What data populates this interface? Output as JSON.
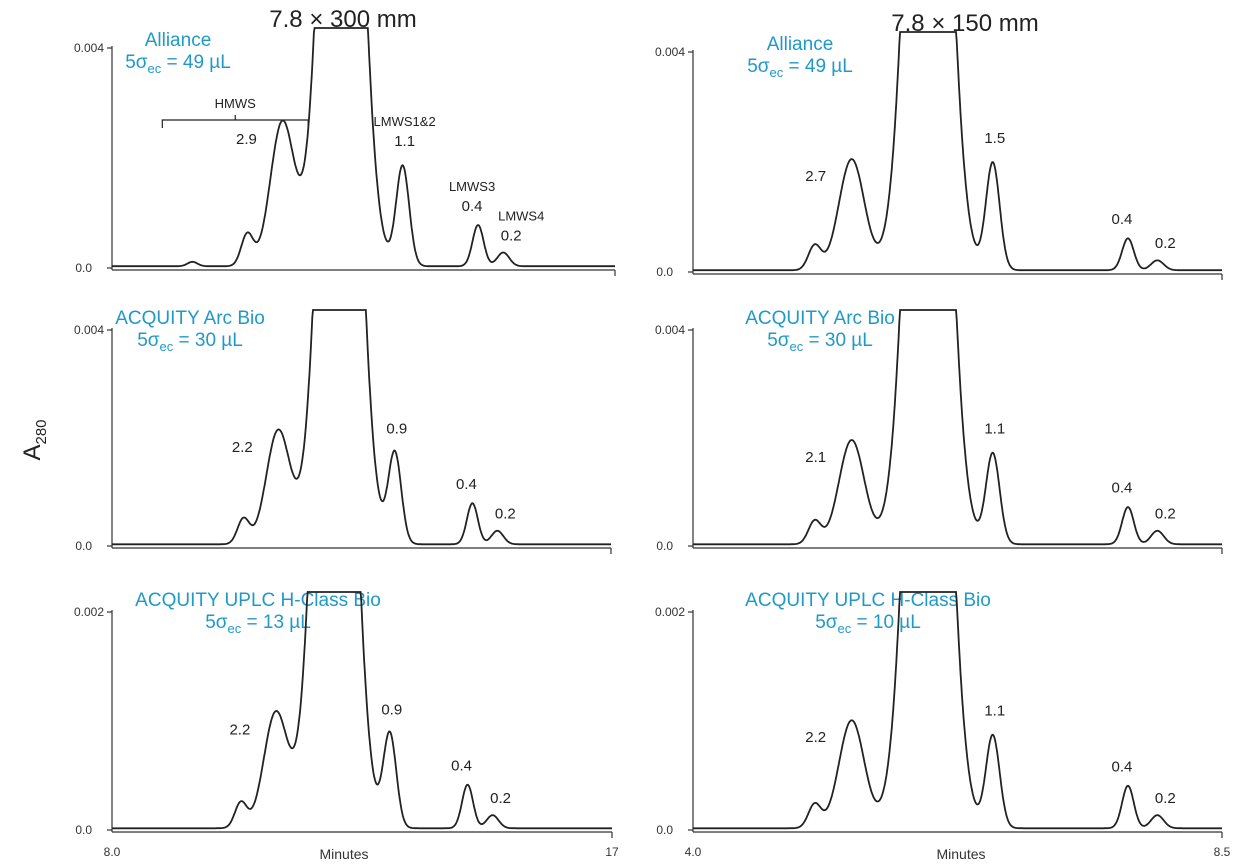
{
  "figure": {
    "column_titles": [
      "7.8 × 300 mm",
      "7.8 × 150 mm"
    ],
    "y_axis_label": "A",
    "y_axis_label_sub": "280",
    "x_axis_label": "Minutes",
    "colors": {
      "instrument_label": "#1f9ac8",
      "trace": "#222222"
    }
  },
  "chart_data": [
    {
      "type": "line",
      "title": "7.8 × 300 mm",
      "instrument": "Alliance",
      "sigma_ec": "49",
      "xlabel": "",
      "ylabel": "A280",
      "xlim": [
        8.0,
        17.0
      ],
      "ylim": [
        0.0,
        0.004
      ],
      "ytick_labels": [
        "0.0",
        "0.004"
      ],
      "xtick_labels": [],
      "peaks": [
        {
          "label": "2.9",
          "name": "",
          "x": 11.05,
          "y": 0.00262
        },
        {
          "label": "1.1",
          "name": "LMWS1&2",
          "x": 13.2,
          "y": 0.00182
        },
        {
          "label": "0.4",
          "name": "LMWS3",
          "x": 14.55,
          "y": 0.00075
        },
        {
          "label": "0.2",
          "name": "LMWS4",
          "x": 15.0,
          "y": 0.00025
        }
      ],
      "annotations": [
        "HMWS"
      ]
    },
    {
      "type": "line",
      "title": "7.8 × 150 mm",
      "instrument": "Alliance",
      "sigma_ec": "49",
      "xlabel": "",
      "ylabel": "A280",
      "xlim": [
        4.0,
        8.5
      ],
      "ylim": [
        0.0,
        0.004
      ],
      "ytick_labels": [
        "0.0",
        "0.004"
      ],
      "xtick_labels": [],
      "peaks": [
        {
          "label": "2.7",
          "x": 5.35,
          "y": 0.00202
        },
        {
          "label": "1.5",
          "x": 6.55,
          "y": 0.00195
        },
        {
          "label": "0.4",
          "x": 7.7,
          "y": 0.00058
        },
        {
          "label": "0.2",
          "x": 7.95,
          "y": 0.00018
        }
      ],
      "annotations": []
    },
    {
      "type": "line",
      "instrument": "ACQUITY Arc Bio",
      "sigma_ec": "30",
      "xlabel": "",
      "ylabel": "A280",
      "xlim": [
        8.0,
        17.0
      ],
      "ylim": [
        0.0,
        0.004
      ],
      "ytick_labels": [
        "0.0",
        "0.004"
      ],
      "xtick_labels": [],
      "peaks": [
        {
          "label": "2.2",
          "x": 11.0,
          "y": 0.00211
        },
        {
          "label": "0.9",
          "x": 13.1,
          "y": 0.00168
        },
        {
          "label": "0.4",
          "x": 14.5,
          "y": 0.00076
        },
        {
          "label": "0.2",
          "x": 14.95,
          "y": 0.00025
        }
      ],
      "annotations": []
    },
    {
      "type": "line",
      "instrument": "ACQUITY Arc Bio",
      "sigma_ec": "30",
      "xlabel": "",
      "ylabel": "A280",
      "xlim": [
        4.0,
        8.5
      ],
      "ylim": [
        0.0,
        0.004
      ],
      "ytick_labels": [
        "0.0",
        "0.004"
      ],
      "xtick_labels": [],
      "peaks": [
        {
          "label": "2.1",
          "x": 5.35,
          "y": 0.00193
        },
        {
          "label": "1.1",
          "x": 6.55,
          "y": 0.00168
        },
        {
          "label": "0.4",
          "x": 7.7,
          "y": 0.00069
        },
        {
          "label": "0.2",
          "x": 7.95,
          "y": 0.00025
        }
      ],
      "annotations": []
    },
    {
      "type": "line",
      "instrument": "ACQUITY UPLC H-Class Bio",
      "sigma_ec": "13",
      "xlabel": "Minutes",
      "ylabel": "A280",
      "xlim": [
        8.0,
        17.0
      ],
      "ylim": [
        0.0,
        0.002
      ],
      "ytick_labels": [
        "0.0",
        "0.002"
      ],
      "xtick_labels": [
        "8.0",
        "17"
      ],
      "peaks": [
        {
          "label": "2.2",
          "x": 10.95,
          "y": 0.00106
        },
        {
          "label": "0.9",
          "x": 13.0,
          "y": 0.00086
        },
        {
          "label": "0.4",
          "x": 14.4,
          "y": 0.0004
        },
        {
          "label": "0.2",
          "x": 14.85,
          "y": 0.00012
        }
      ],
      "annotations": []
    },
    {
      "type": "line",
      "instrument": "ACQUITY UPLC H-Class Bio",
      "sigma_ec": "10",
      "xlabel": "Minutes",
      "ylabel": "A280",
      "xlim": [
        4.0,
        8.5
      ],
      "ylim": [
        0.0,
        0.002
      ],
      "ytick_labels": [
        "0.0",
        "0.002"
      ],
      "xtick_labels": [
        "4.0",
        "8.5"
      ],
      "peaks": [
        {
          "label": "2.2",
          "x": 5.35,
          "y": 0.00099
        },
        {
          "label": "1.1",
          "x": 6.55,
          "y": 0.00085
        },
        {
          "label": "0.4",
          "x": 7.7,
          "y": 0.00039
        },
        {
          "label": "0.2",
          "x": 7.95,
          "y": 0.00012
        }
      ],
      "annotations": []
    }
  ]
}
